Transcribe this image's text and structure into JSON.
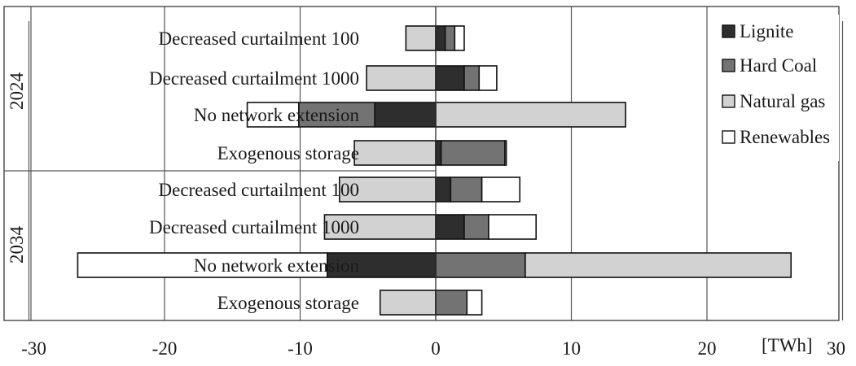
{
  "chart_data": {
    "type": "bar",
    "orientation": "horizontal",
    "stacking": "diverging",
    "xlim": [
      -30,
      30
    ],
    "x_ticks": [
      "-30",
      "-20",
      "-10",
      "0",
      "10",
      "20",
      "30"
    ],
    "unit_label": "[TWh]",
    "grid": "vertical",
    "legend_position": "right",
    "legend": [
      {
        "key": "lignite",
        "label": "Lignite",
        "color": "#2e2e2e"
      },
      {
        "key": "hard_coal",
        "label": "Hard Coal",
        "color": "#737373"
      },
      {
        "key": "natural_gas",
        "label": "Natural gas",
        "color": "#d2d2d2"
      },
      {
        "key": "renewables",
        "label": "Renewables",
        "color": "#ffffff"
      }
    ],
    "groups": [
      {
        "label": "2024",
        "rows": [
          {
            "label": "Decreased curtailment 100",
            "negative": {
              "lignite": 0,
              "hard_coal": 0,
              "natural_gas": 2.2,
              "renewables": 0
            },
            "positive": {
              "lignite": 0.7,
              "hard_coal": 0.7,
              "natural_gas": 0,
              "renewables": 0.7
            }
          },
          {
            "label": "Decreased curtailment 1000",
            "negative": {
              "lignite": 0,
              "hard_coal": 0,
              "natural_gas": 5.1,
              "renewables": 0
            },
            "positive": {
              "lignite": 2.1,
              "hard_coal": 1.1,
              "natural_gas": 0,
              "renewables": 1.3
            }
          },
          {
            "label": "No network extension",
            "negative": {
              "lignite": 4.5,
              "hard_coal": 5.6,
              "natural_gas": 0,
              "renewables": 3.8
            },
            "positive": {
              "lignite": 0,
              "hard_coal": 0,
              "natural_gas": 14,
              "renewables": 0
            }
          },
          {
            "label": "Exogenous storage",
            "negative": {
              "lignite": 0,
              "hard_coal": 0,
              "natural_gas": 6.0,
              "renewables": 0
            },
            "positive": {
              "lignite": 0.4,
              "hard_coal": 4.7,
              "natural_gas": 0,
              "renewables": 0.1
            }
          }
        ]
      },
      {
        "label": "2034",
        "rows": [
          {
            "label": "Decreased curtailment 100",
            "negative": {
              "lignite": 0,
              "hard_coal": 0,
              "natural_gas": 7.1,
              "renewables": 0
            },
            "positive": {
              "lignite": 1.1,
              "hard_coal": 2.3,
              "natural_gas": 0,
              "renewables": 2.8
            }
          },
          {
            "label": "Decreased curtailment 1000",
            "negative": {
              "lignite": 0,
              "hard_coal": 0,
              "natural_gas": 8.2,
              "renewables": 0
            },
            "positive": {
              "lignite": 2.1,
              "hard_coal": 1.8,
              "natural_gas": 0,
              "renewables": 3.5
            }
          },
          {
            "label": "No network extension",
            "negative": {
              "lignite": 8.0,
              "hard_coal": 0,
              "natural_gas": 0,
              "renewables": 18.4
            },
            "positive": {
              "lignite": 0,
              "hard_coal": 6.6,
              "natural_gas": 19.6,
              "renewables": 0
            }
          },
          {
            "label": "Exogenous storage",
            "negative": {
              "lignite": 0,
              "hard_coal": 0,
              "natural_gas": 4.1,
              "renewables": 0
            },
            "positive": {
              "lignite": 0,
              "hard_coal": 2.3,
              "natural_gas": 0,
              "renewables": 1.1
            }
          }
        ]
      }
    ]
  }
}
